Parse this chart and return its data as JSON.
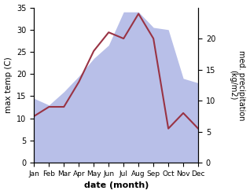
{
  "months": [
    "Jan",
    "Feb",
    "Mar",
    "Apr",
    "May",
    "Jun",
    "Jul",
    "Aug",
    "Sep",
    "Oct",
    "Nov",
    "Dec"
  ],
  "max_temp": [
    14.5,
    13.0,
    16.0,
    19.5,
    23.5,
    26.5,
    34.0,
    34.0,
    30.5,
    30.0,
    19.0,
    18.0
  ],
  "precipitation": [
    7.5,
    9.0,
    9.0,
    13.0,
    18.0,
    21.0,
    20.0,
    24.0,
    20.0,
    5.5,
    8.0,
    5.5
  ],
  "temp_fill_color": "#b8bfe8",
  "precip_color": "#993344",
  "ylabel_left": "max temp (C)",
  "ylabel_right": "med. precipitation\n(kg/m2)",
  "xlabel": "date (month)",
  "ylim_left": [
    0,
    35
  ],
  "ylim_right": [
    0,
    25
  ],
  "right_ticks": [
    0,
    5,
    10,
    15,
    20
  ],
  "background_color": "#ffffff"
}
